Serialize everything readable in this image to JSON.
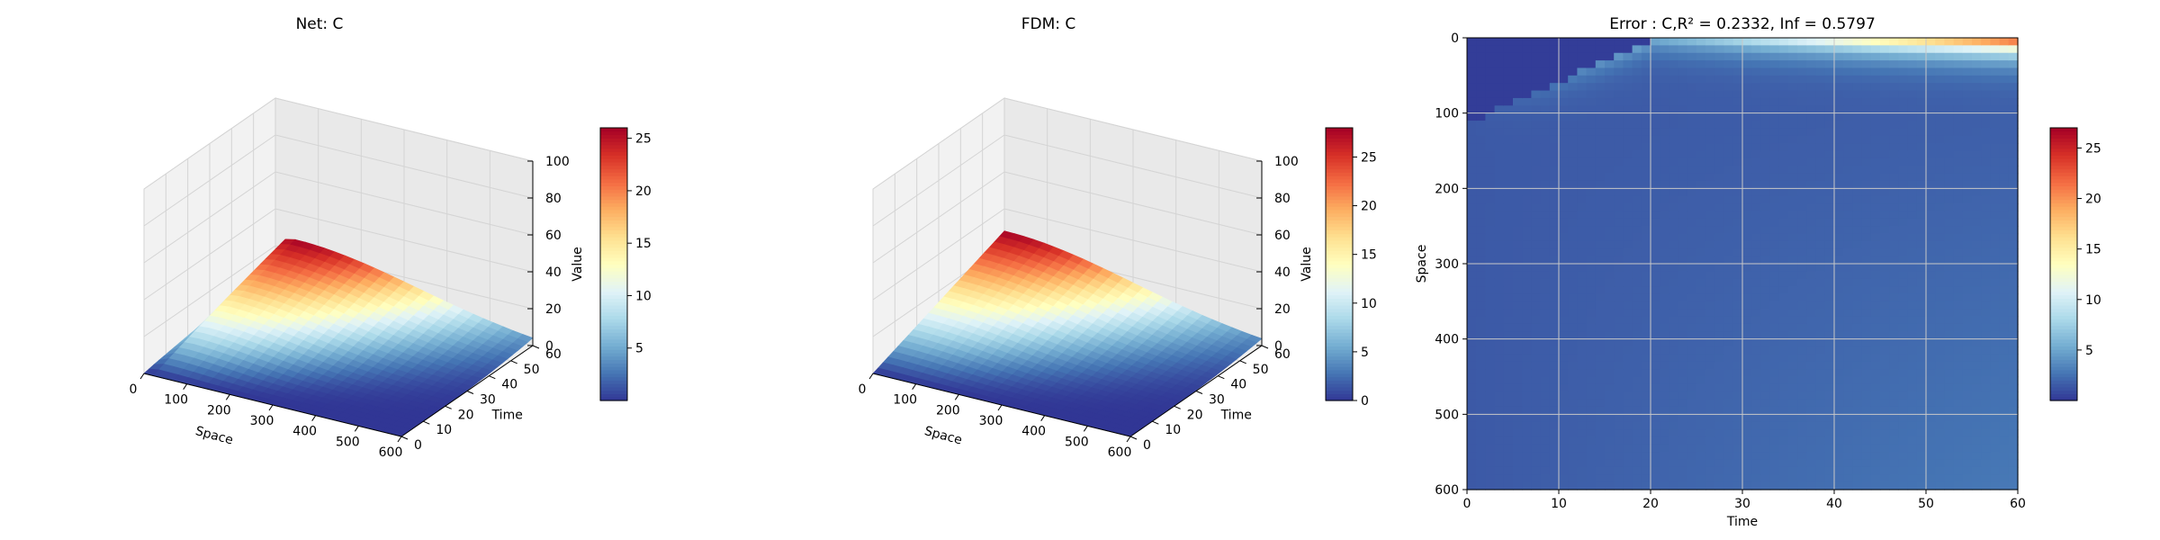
{
  "chart_data": [
    {
      "type": "surface",
      "title": "Net: C",
      "xlabel": "Space",
      "ylabel": "Time",
      "zlabel": "Value",
      "xlim": [
        0,
        600
      ],
      "ylim": [
        0,
        60
      ],
      "zlim": [
        0,
        100
      ],
      "xticks": [
        0,
        100,
        200,
        300,
        400,
        500,
        600
      ],
      "yticks": [
        0,
        10,
        20,
        30,
        40,
        50,
        60
      ],
      "zticks": [
        0,
        20,
        40,
        60,
        80,
        100
      ],
      "peak": {
        "space": 40,
        "time": 60,
        "value": 26
      },
      "colormap": "RdYlBu_r",
      "colorbar": {
        "min": 0,
        "max": 26,
        "ticks": [
          5,
          10,
          15,
          20,
          25
        ]
      }
    },
    {
      "type": "surface",
      "title": "FDM: C",
      "xlabel": "Space",
      "ylabel": "Time",
      "zlabel": "Value",
      "xlim": [
        0,
        600
      ],
      "ylim": [
        0,
        60
      ],
      "zlim": [
        0,
        100
      ],
      "xticks": [
        0,
        100,
        200,
        300,
        400,
        500,
        600
      ],
      "yticks": [
        0,
        10,
        20,
        30,
        40,
        50,
        60
      ],
      "zticks": [
        0,
        20,
        40,
        60,
        80,
        100
      ],
      "peak": {
        "space": 0,
        "time": 60,
        "value": 28
      },
      "colormap": "RdYlBu_r",
      "colorbar": {
        "min": 0,
        "max": 28,
        "ticks": [
          0,
          5,
          10,
          15,
          20,
          25
        ]
      }
    },
    {
      "type": "heatmap",
      "title": "Error : C,R² = 0.2332, Inf = 0.5797",
      "xlabel": "Time",
      "ylabel": "Space",
      "xlim": [
        0,
        60
      ],
      "ylim": [
        600,
        0
      ],
      "xticks": [
        0,
        10,
        20,
        30,
        40,
        50,
        60
      ],
      "yticks": [
        0,
        100,
        200,
        300,
        400,
        500,
        600
      ],
      "grid": true,
      "colormap": "RdYlBu_r",
      "max_error": 26,
      "colorbar": {
        "min": 0,
        "max": 27,
        "ticks": [
          5,
          10,
          15,
          20,
          25
        ]
      }
    }
  ]
}
